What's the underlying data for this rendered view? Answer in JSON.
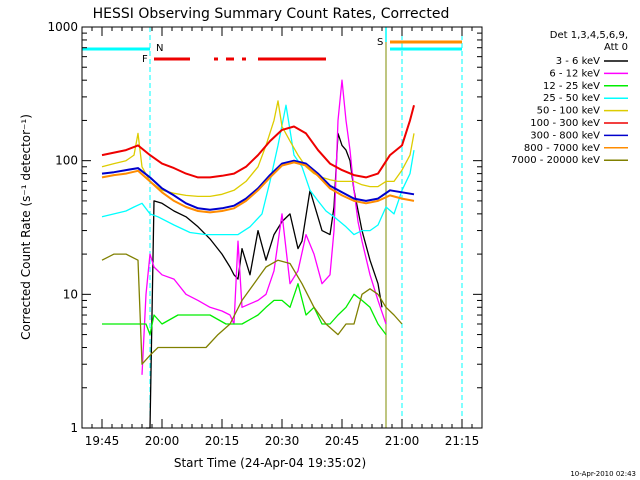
{
  "chart_data": {
    "type": "line",
    "title": "HESSI Observing Summary Count Rates, Corrected",
    "xlabel": "Start Time (24-Apr-04 19:35:02)",
    "ylabel": "Corrected Count Rate (s⁻¹ detector⁻¹)",
    "yscale": "log",
    "ylim": [
      1,
      1000
    ],
    "xlim_minutes_after_1940": [
      0,
      100
    ],
    "x_tick_labels": [
      "19:45",
      "20:00",
      "20:15",
      "20:30",
      "20:45",
      "21:00",
      "21:15"
    ],
    "x_tick_minutes": [
      5,
      20,
      35,
      50,
      65,
      80,
      95
    ],
    "y_tick_labels": [
      "1",
      "10",
      "100",
      "1000"
    ],
    "y_tick_values": [
      1,
      10,
      100,
      1000
    ],
    "legend_header": [
      "Det 1,3,4,5,6,9,",
      "Att 0"
    ],
    "legend_position": "right",
    "timestamp": "10-Apr-2010 02:43",
    "flags": {
      "N": {
        "label": "N",
        "minute": 17,
        "color": "#00ffff"
      },
      "F": {
        "label": "F",
        "color": "#ee0000",
        "segments_minutes": [
          [
            18,
            27
          ],
          [
            33,
            34
          ],
          [
            36,
            38
          ],
          [
            40,
            41
          ],
          [
            44,
            61
          ]
        ]
      },
      "S": {
        "label": "S",
        "minute": 76,
        "color": "#ff8c00"
      }
    },
    "series": [
      {
        "name": "3 - 6 keV",
        "color": "#000000",
        "x": [
          16,
          17,
          18,
          20,
          23,
          26,
          29,
          32,
          35,
          37,
          38,
          39,
          40,
          42,
          44,
          46,
          48,
          50,
          52,
          54,
          55,
          57,
          60,
          62,
          63,
          64,
          65,
          66,
          67,
          68,
          70,
          72,
          74,
          75
        ],
        "y": [
          1,
          1,
          50,
          48,
          42,
          38,
          32,
          26,
          20,
          16,
          14,
          13,
          22,
          14,
          30,
          18,
          28,
          35,
          40,
          22,
          25,
          60,
          30,
          28,
          45,
          160,
          130,
          120,
          100,
          60,
          30,
          18,
          12,
          8
        ]
      },
      {
        "name": "6 - 12 keV",
        "color": "#ff00ff",
        "x": [
          15,
          16,
          17,
          18,
          20,
          23,
          26,
          29,
          32,
          35,
          37,
          38,
          39,
          40,
          42,
          44,
          46,
          48,
          50,
          52,
          54,
          56,
          58,
          60,
          62,
          63,
          64,
          65,
          66,
          67,
          68,
          69,
          70,
          72,
          74,
          76
        ],
        "y": [
          2.5,
          10,
          20,
          16,
          14,
          13,
          10,
          9,
          8,
          7.5,
          7,
          6,
          25,
          8,
          8.5,
          9,
          10,
          15,
          40,
          12,
          15,
          28,
          20,
          12,
          14,
          30,
          200,
          400,
          200,
          120,
          60,
          35,
          25,
          14,
          9,
          6
        ]
      },
      {
        "name": "12 - 25 keV",
        "color": "#00ee00",
        "x": [
          5,
          8,
          11,
          14,
          16,
          17,
          18,
          20,
          24,
          28,
          32,
          36,
          40,
          44,
          46,
          48,
          50,
          52,
          54,
          56,
          58,
          60,
          62,
          64,
          66,
          68,
          70,
          72,
          74,
          76
        ],
        "y": [
          6,
          6,
          6,
          6,
          6,
          5,
          7,
          6,
          7,
          7,
          7,
          6,
          6,
          7,
          8,
          9,
          9,
          8,
          12,
          7,
          8,
          6,
          6,
          7,
          8,
          10,
          9,
          8,
          6,
          5
        ]
      },
      {
        "name": "25 - 50 keV",
        "color": "#00ffff",
        "x": [
          5,
          8,
          11,
          13,
          15,
          17,
          19,
          23,
          27,
          31,
          35,
          39,
          42,
          45,
          47,
          49,
          51,
          53,
          55,
          57,
          59,
          61,
          63,
          66,
          68,
          70,
          72,
          74,
          76,
          78,
          80,
          82,
          83
        ],
        "y": [
          38,
          40,
          42,
          45,
          48,
          40,
          38,
          33,
          29,
          28,
          28,
          28,
          32,
          40,
          70,
          130,
          260,
          110,
          90,
          60,
          50,
          42,
          38,
          32,
          28,
          30,
          30,
          33,
          45,
          40,
          60,
          80,
          120
        ]
      },
      {
        "name": "50 - 100 keV",
        "color": "#ddcc00",
        "x": [
          5,
          8,
          11,
          13,
          14,
          15,
          17,
          20,
          23,
          26,
          29,
          32,
          35,
          38,
          41,
          44,
          46,
          48,
          49,
          50,
          52,
          54,
          56,
          58,
          60,
          62,
          64,
          66,
          68,
          70,
          72,
          74,
          76,
          78,
          80,
          82,
          83
        ],
        "y": [
          90,
          95,
          100,
          110,
          160,
          90,
          70,
          60,
          57,
          55,
          54,
          54,
          56,
          60,
          70,
          90,
          130,
          200,
          280,
          180,
          140,
          110,
          90,
          80,
          75,
          72,
          70,
          70,
          70,
          66,
          64,
          64,
          70,
          70,
          85,
          110,
          160
        ]
      },
      {
        "name": "100 - 300 keV",
        "color": "#ee0000",
        "x": [
          5,
          8,
          11,
          14,
          17,
          20,
          23,
          26,
          29,
          32,
          35,
          38,
          41,
          44,
          47,
          50,
          53,
          56,
          59,
          62,
          65,
          68,
          71,
          74,
          77,
          80,
          82,
          83
        ],
        "y": [
          110,
          115,
          120,
          130,
          110,
          95,
          88,
          80,
          75,
          75,
          77,
          80,
          90,
          110,
          140,
          170,
          180,
          160,
          120,
          95,
          85,
          78,
          75,
          80,
          110,
          130,
          200,
          260
        ]
      },
      {
        "name": "300 - 800 keV",
        "color": "#0000cc",
        "x": [
          5,
          8,
          11,
          14,
          17,
          20,
          23,
          26,
          29,
          32,
          35,
          38,
          41,
          44,
          47,
          50,
          53,
          56,
          59,
          62,
          65,
          68,
          71,
          74,
          77,
          80,
          83
        ],
        "y": [
          80,
          82,
          85,
          88,
          75,
          62,
          55,
          48,
          44,
          43,
          44,
          46,
          52,
          62,
          78,
          95,
          100,
          95,
          80,
          65,
          58,
          52,
          50,
          52,
          60,
          58,
          56
        ]
      },
      {
        "name": "800 - 7000 keV",
        "color": "#ff8c00",
        "x": [
          5,
          8,
          11,
          14,
          17,
          20,
          23,
          26,
          29,
          32,
          35,
          38,
          41,
          44,
          47,
          50,
          53,
          56,
          59,
          62,
          65,
          68,
          71,
          74,
          77,
          80,
          83
        ],
        "y": [
          75,
          78,
          80,
          84,
          70,
          58,
          50,
          45,
          42,
          41,
          42,
          44,
          50,
          60,
          75,
          92,
          97,
          92,
          77,
          62,
          55,
          50,
          48,
          50,
          55,
          52,
          50
        ]
      },
      {
        "name": "7000 - 20000 keV",
        "color": "#808000",
        "x": [
          5,
          8,
          11,
          14,
          15,
          17,
          19,
          22,
          25,
          28,
          31,
          34,
          37,
          40,
          43,
          46,
          49,
          52,
          55,
          58,
          61,
          64,
          66,
          68,
          70,
          72,
          74,
          76,
          78,
          80
        ],
        "y": [
          18,
          20,
          20,
          18,
          3,
          3.5,
          4,
          4,
          4,
          4,
          4,
          5,
          6,
          9,
          12,
          16,
          18,
          17,
          12,
          8,
          6,
          5,
          6,
          6,
          10,
          11,
          10,
          8,
          7,
          6
        ]
      }
    ]
  }
}
